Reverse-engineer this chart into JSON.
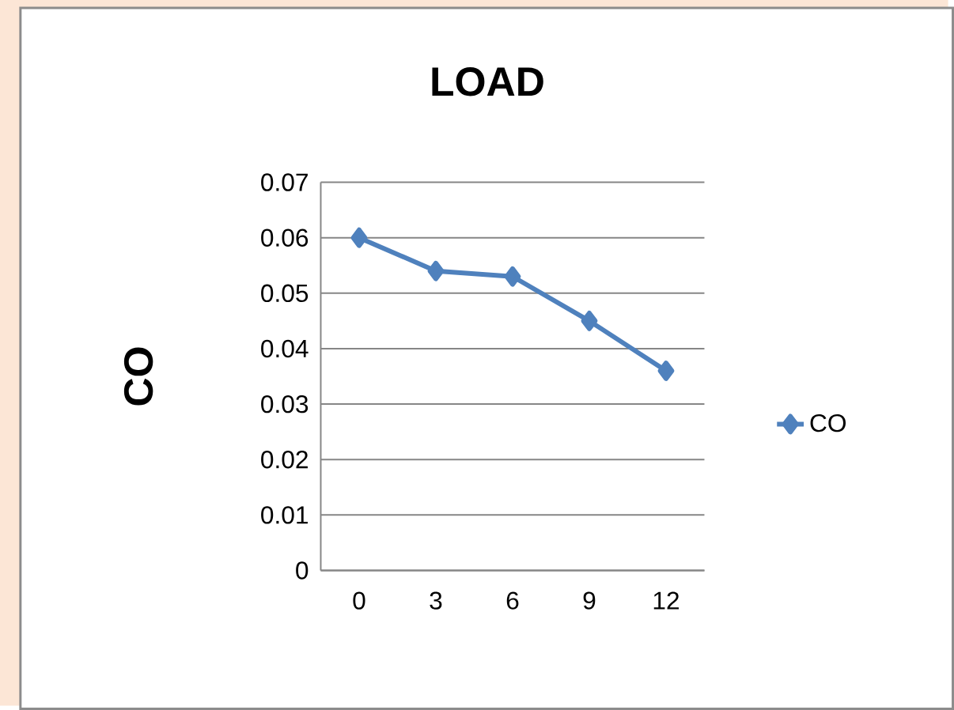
{
  "chart_data": {
    "type": "line",
    "title": "LOAD",
    "ylabel": "CO",
    "categories": [
      "0",
      "3",
      "6",
      "9",
      "12"
    ],
    "series": [
      {
        "name": "CO",
        "color": "#4f81bd",
        "values": [
          0.06,
          0.054,
          0.053,
          0.045,
          0.036
        ]
      }
    ],
    "ylim": [
      0,
      0.07
    ],
    "yticks": [
      {
        "value": 0,
        "label": "0"
      },
      {
        "value": 0.01,
        "label": "0.01"
      },
      {
        "value": 0.02,
        "label": "0.02"
      },
      {
        "value": 0.03,
        "label": "0.03"
      },
      {
        "value": 0.04,
        "label": "0.04"
      },
      {
        "value": 0.05,
        "label": "0.05"
      },
      {
        "value": 0.06,
        "label": "0.06"
      },
      {
        "value": 0.07,
        "label": "0.07"
      }
    ],
    "grid": "y",
    "legend": "right",
    "marker": "diamond",
    "line_style": "solid"
  }
}
